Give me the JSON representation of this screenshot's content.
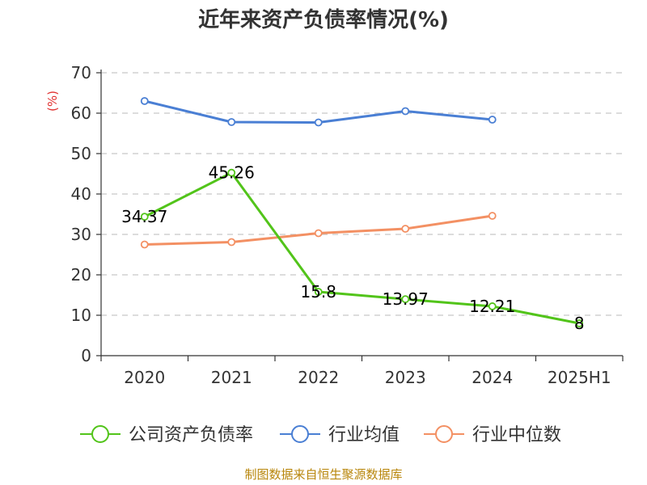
{
  "chart_data": {
    "type": "line",
    "title": "近年来资产负债率情况(%)",
    "ylabel": "(%)",
    "xlabel": "",
    "ylim": [
      0,
      70
    ],
    "yticks": [
      0,
      10,
      20,
      30,
      40,
      50,
      60,
      70
    ],
    "grid": true,
    "legend_position": "bottom",
    "categories": [
      "2020",
      "2021",
      "2022",
      "2023",
      "2024",
      "2025H1"
    ],
    "series": [
      {
        "name": "公司资产负债率",
        "color": "#52c41a",
        "values": [
          34.37,
          45.26,
          15.8,
          13.97,
          12.21,
          8
        ],
        "labels": [
          "34.37",
          "45.26",
          "15.8",
          "13.97",
          "12.21",
          "8"
        ]
      },
      {
        "name": "行业均值",
        "color": "#4a7fd4",
        "values": [
          63,
          57.8,
          57.7,
          60.5,
          58.4,
          null
        ]
      },
      {
        "name": "行业中位数",
        "color": "#f39063",
        "values": [
          27.5,
          28.1,
          30.3,
          31.4,
          34.6,
          null
        ]
      }
    ]
  },
  "footer": {
    "source": "制图数据来自恒生聚源数据库"
  }
}
